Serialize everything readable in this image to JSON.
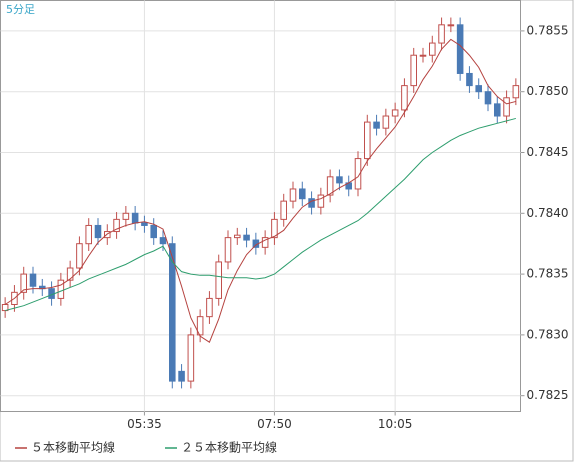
{
  "chart_data": {
    "type": "candlestick",
    "title": "5分足",
    "categories": [
      null,
      null,
      null,
      null,
      null,
      null,
      null,
      null,
      null,
      null,
      null,
      null,
      null,
      null,
      null,
      "05:35",
      null,
      null,
      null,
      null,
      null,
      null,
      null,
      null,
      null,
      null,
      null,
      null,
      null,
      "07:50",
      null,
      null,
      null,
      null,
      null,
      null,
      null,
      null,
      null,
      null,
      null,
      null,
      "10:05",
      null,
      null,
      null,
      null,
      null,
      null,
      null,
      null,
      null,
      null,
      null,
      null,
      null
    ],
    "open": [
      0.7832,
      0.78325,
      0.78335,
      0.7835,
      0.7834,
      0.78338,
      0.7833,
      0.78345,
      0.78355,
      0.78375,
      0.7839,
      0.7838,
      0.78385,
      0.78395,
      0.784,
      0.78392,
      0.7839,
      0.7838,
      0.78375,
      0.7827,
      0.78262,
      0.783,
      0.78315,
      0.7833,
      0.7836,
      0.7838,
      0.78382,
      0.78378,
      0.78372,
      0.7838,
      0.78395,
      0.7841,
      0.7842,
      0.78412,
      0.78405,
      0.78415,
      0.7843,
      0.78425,
      0.7842,
      0.78445,
      0.78475,
      0.7847,
      0.7848,
      0.78485,
      0.78505,
      0.7853,
      0.7853,
      0.7854,
      0.78555,
      0.78555,
      0.78515,
      0.78505,
      0.785,
      0.7849,
      0.7848,
      0.78495
    ],
    "high": [
      0.78331,
      0.78341,
      0.78356,
      0.78356,
      0.78346,
      0.78344,
      0.78351,
      0.78361,
      0.78381,
      0.78396,
      0.78396,
      0.78391,
      0.78401,
      0.78406,
      0.78406,
      0.78398,
      0.78396,
      0.78386,
      0.78381,
      0.78276,
      0.78306,
      0.78321,
      0.78336,
      0.78366,
      0.78386,
      0.78388,
      0.78388,
      0.78384,
      0.78386,
      0.78401,
      0.78416,
      0.78426,
      0.78426,
      0.78418,
      0.78421,
      0.78436,
      0.78436,
      0.78431,
      0.78451,
      0.78481,
      0.78481,
      0.78486,
      0.78491,
      0.78511,
      0.78536,
      0.78536,
      0.78546,
      0.78561,
      0.78561,
      0.78561,
      0.78521,
      0.78511,
      0.78506,
      0.78496,
      0.78501,
      0.78511
    ],
    "low": [
      0.78314,
      0.78319,
      0.78329,
      0.78334,
      0.78332,
      0.78324,
      0.78324,
      0.78339,
      0.78349,
      0.78369,
      0.78374,
      0.78374,
      0.78379,
      0.78389,
      0.78386,
      0.78384,
      0.78374,
      0.78369,
      0.78256,
      0.78256,
      0.78256,
      0.78294,
      0.78309,
      0.78324,
      0.78354,
      0.78374,
      0.78372,
      0.78366,
      0.78366,
      0.78374,
      0.78389,
      0.78404,
      0.78406,
      0.78399,
      0.78399,
      0.78409,
      0.78419,
      0.78414,
      0.78414,
      0.78439,
      0.78464,
      0.78464,
      0.78474,
      0.78479,
      0.78499,
      0.78524,
      0.78524,
      0.78534,
      0.78549,
      0.78509,
      0.78499,
      0.78494,
      0.78484,
      0.78474,
      0.78474,
      0.78489
    ],
    "close": [
      0.78325,
      0.78335,
      0.7835,
      0.7834,
      0.78338,
      0.7833,
      0.78345,
      0.78355,
      0.78375,
      0.7839,
      0.7838,
      0.78385,
      0.78395,
      0.784,
      0.78392,
      0.7839,
      0.7838,
      0.78375,
      0.78262,
      0.78262,
      0.783,
      0.78315,
      0.7833,
      0.7836,
      0.7838,
      0.78382,
      0.78378,
      0.78372,
      0.7838,
      0.78395,
      0.7841,
      0.7842,
      0.78412,
      0.78405,
      0.78415,
      0.7843,
      0.78425,
      0.7842,
      0.78445,
      0.78475,
      0.7847,
      0.7848,
      0.78485,
      0.78505,
      0.7853,
      0.7853,
      0.7854,
      0.78555,
      0.78555,
      0.78515,
      0.78505,
      0.785,
      0.7849,
      0.7848,
      0.78495,
      0.78505
    ],
    "up_color": "#c0504d",
    "down_color": "#4a7ab5",
    "series": [
      {
        "name": "５本移動平均線",
        "color": "#b5423f",
        "values": [
          0.78325,
          0.7833,
          0.78337,
          0.78338,
          0.78338,
          0.78339,
          0.78341,
          0.78346,
          0.78353,
          0.78365,
          0.78376,
          0.78383,
          0.78387,
          0.7839,
          0.78392,
          0.78393,
          0.78391,
          0.78387,
          0.78364,
          0.7834,
          0.78314,
          0.78299,
          0.78294,
          0.78313,
          0.78337,
          0.78353,
          0.78366,
          0.78374,
          0.78378,
          0.78381,
          0.78386,
          0.78396,
          0.78405,
          0.7841,
          0.78412,
          0.78416,
          0.78421,
          0.78425,
          0.7843,
          0.78443,
          0.78453,
          0.78462,
          0.78471,
          0.78483,
          0.78496,
          0.7851,
          0.78521,
          0.78535,
          0.78543,
          0.78538,
          0.7853,
          0.7852,
          0.78505,
          0.78496,
          0.7849,
          0.78492
        ]
      },
      {
        "name": "２５本移動平均線",
        "color": "#2e9e6e",
        "values": [
          0.7832,
          0.78322,
          0.78324,
          0.78327,
          0.7833,
          0.78333,
          0.78336,
          0.78339,
          0.78342,
          0.78346,
          0.78349,
          0.78352,
          0.78355,
          0.78358,
          0.78362,
          0.78366,
          0.78369,
          0.78373,
          0.7836,
          0.78352,
          0.7835,
          0.78349,
          0.78349,
          0.78348,
          0.78347,
          0.78347,
          0.78347,
          0.78346,
          0.78347,
          0.7835,
          0.78356,
          0.78362,
          0.78368,
          0.78373,
          0.78378,
          0.78382,
          0.78386,
          0.7839,
          0.78394,
          0.784,
          0.78407,
          0.78414,
          0.78421,
          0.78428,
          0.78436,
          0.78444,
          0.7845,
          0.78455,
          0.7846,
          0.78464,
          0.78467,
          0.7847,
          0.78472,
          0.78474,
          0.78476,
          0.78478
        ]
      }
    ],
    "ylim": [
      0.78237,
      0.78575
    ],
    "yticks": [
      0.7825,
      {
        "value": 0.783,
        "label": "0.7830"
      },
      0.7835,
      {
        "value": 0.784,
        "label": "0.7840"
      },
      0.7845,
      {
        "value": 0.785,
        "label": "0.7850"
      },
      0.7855
    ],
    "grid": true
  }
}
